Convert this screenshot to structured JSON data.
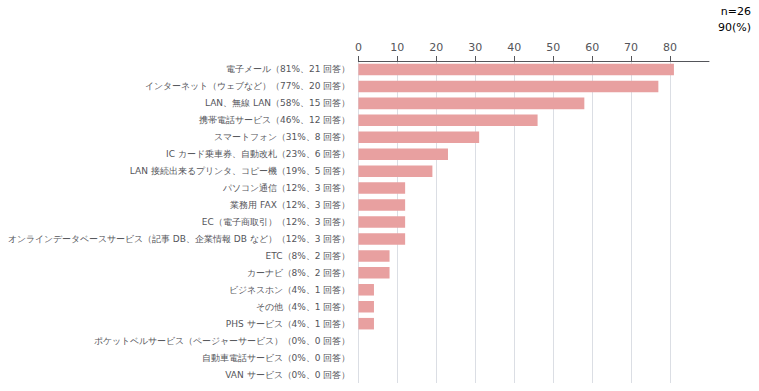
{
  "chart_data": {
    "type": "bar",
    "orientation": "horizontal",
    "annotations": [
      "n=26",
      "90(%)"
    ],
    "categories": [
      "電子メール（81%、21 回答）",
      "インターネット（ウェブなど）（77%、20 回答）",
      "LAN、無線 LAN（58%、15 回答）",
      "携帯電話サービス（46%、12 回答）",
      "スマートフォン（31%、8 回答）",
      "IC カード乗車券、自動改札（23%、6 回答）",
      "LAN 接続出来るプリンタ、コピー機（19%、5 回答）",
      "パソコン通信（12%、3 回答）",
      "業務用 FAX（12%、3 回答）",
      "EC（電子商取引）（12%、3 回答）",
      "オンラインデータベースサービス（記事 DB、企業情報 DB など）（12%、3 回答）",
      "ETC（8%、2 回答）",
      "カーナビ（8%、2 回答）",
      "ビジネスホン（4%、1 回答）",
      "その他（4%、1 回答）",
      "PHS サービス（4%、1 回答）",
      "ポケットベルサービス（ページャーサービス）（0%、0 回答）",
      "自動車電話サービス（0%、0 回答）",
      "VAN サービス（0%、0 回答）"
    ],
    "values": [
      81,
      77,
      58,
      46,
      31,
      23,
      19,
      12,
      12,
      12,
      12,
      8,
      8,
      4,
      4,
      4,
      0,
      0,
      0
    ],
    "color": "#e8a0a0",
    "xlim": [
      0,
      90
    ],
    "xticks": [
      0,
      10,
      20,
      30,
      40,
      50,
      60,
      70,
      80
    ],
    "grid": true
  }
}
